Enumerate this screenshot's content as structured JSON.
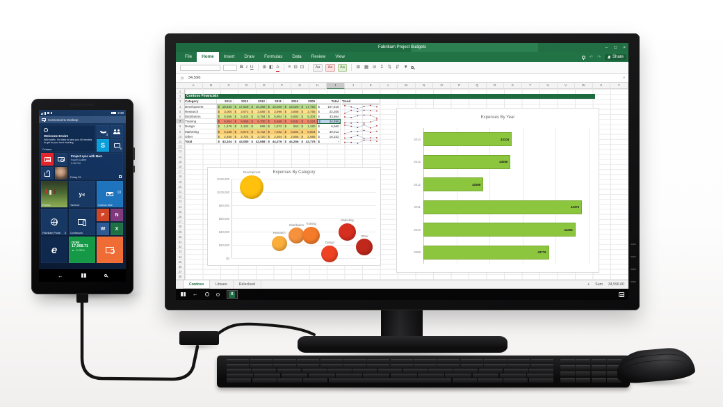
{
  "phone": {
    "status_time": "2:30",
    "banner": "Connected to Desktop",
    "tiles": {
      "cortana": {
        "greeting": "Welcome Erwin!",
        "message": "With traffic, it's likely to take you 45 minutes to get to your next meeting.",
        "label": "Cortana"
      },
      "phone_badge": "3",
      "messaging_badge": "5",
      "skype_letter": "S",
      "calendar": {
        "event": "Project sync with Marc",
        "location": "Fourth Coffee",
        "time": "2:30 PM",
        "date": "Friday 29"
      },
      "photos_label": "Photos",
      "yammer": {
        "logo": "y«",
        "label": "Yammer"
      },
      "outlook": {
        "label": "Outlook Mail",
        "badge": "10"
      },
      "fabrikam": {
        "label": "Fabrikam Portal",
        "badge": "4"
      },
      "continuum_label": "Continuum",
      "office_letters": {
        "powerpoint": "P",
        "onenote": "N",
        "word": "W",
        "excel": "X"
      },
      "edge_letter": "e",
      "dow": {
        "index": "DOW",
        "value": "17,068.71",
        "change": "▲ +0.32%"
      }
    },
    "colors": {
      "skype": "#0a9fdb",
      "news": "#e3242b",
      "powerpoint": "#d04526",
      "onenote": "#80397b",
      "word": "#2d5994",
      "excel": "#1e7145",
      "edge": "#1e74bd",
      "dow": "#159947",
      "sync": "#ef6c35"
    }
  },
  "excel": {
    "title": "Fabrikam Project Budgets",
    "window_controls": [
      "–",
      "□",
      "×"
    ],
    "ribbon_tabs": [
      "File",
      "Home",
      "Insert",
      "Draw",
      "Formulas",
      "Data",
      "Review",
      "View"
    ],
    "active_tab": "Home",
    "share_label": "Share",
    "toolbar": {
      "bold": "B",
      "italic": "I",
      "underline": "U",
      "borders": "⊞",
      "fill_color": "◧",
      "font_color": "A",
      "align": "≡",
      "merge": "⊟",
      "wrap": "⊡",
      "style_chips": [
        "Aa",
        "Aa",
        "Aa"
      ],
      "icons": [
        {
          "name": "insert-cells-icon",
          "g": "⊞"
        },
        {
          "name": "format-table-icon",
          "g": "▦"
        },
        {
          "name": "clear-icon",
          "g": "⊘"
        },
        {
          "name": "autosum-icon",
          "g": "Σ"
        },
        {
          "name": "sort-asc-icon",
          "g": "⇅"
        },
        {
          "name": "sort-desc-icon",
          "g": "⇵"
        },
        {
          "name": "filter-icon",
          "g": "▼"
        }
      ]
    },
    "formula_bar": {
      "fx_label": "fx",
      "value": "34,596"
    },
    "columns": [
      "A",
      "B",
      "C",
      "D",
      "E",
      "F",
      "G",
      "H",
      "I",
      "J",
      "K",
      "L",
      "M",
      "N",
      "O",
      "P",
      "Q",
      "R",
      "S",
      "T",
      "U",
      "V",
      "W",
      "X",
      "Y"
    ],
    "selected_column": "I",
    "selected_row": 7,
    "row_count": 38,
    "table": {
      "banner": "Contoso Financials",
      "currency_symbol": "$",
      "headers": [
        "Category",
        "2014",
        "2013",
        "2012",
        "2011",
        "2010",
        "2009",
        "Total",
        "Trend"
      ],
      "rows": [
        {
          "category": "Development",
          "values": [
            18840,
            17628,
            16368,
            18000,
            19020,
            17760
          ],
          "total": "107,616",
          "fill": "#b7dd8b"
        },
        {
          "category": "Research",
          "values": [
            3000,
            3972,
            3588,
            3996,
            3888,
            3756
          ],
          "total": "22,200",
          "fill": "#ffe08a"
        },
        {
          "category": "Distribution",
          "values": [
            5556,
            5424,
            5784,
            5904,
            5892,
            5304
          ],
          "total": "33,864",
          "fill": "#d9e88c"
        },
        {
          "category": "Training",
          "values": [
            5604,
            5556,
            5700,
            5568,
            5844,
            6324
          ],
          "total": "34,596",
          "fill": "#ef8468",
          "selected_total": true
        },
        {
          "category": "Design",
          "values": [
            1476,
            1104,
            696,
            1572,
            552,
            1260
          ],
          "total": "6,660",
          "fill": "#d7e993"
        },
        {
          "category": "Marketing",
          "values": [
            6168,
            6672,
            6732,
            7032,
            6504,
            6804
          ],
          "total": "39,912",
          "fill": "#fecf74"
        },
        {
          "category": "Other",
          "values": [
            2460,
            2724,
            3720,
            2304,
            2556,
            2568
          ],
          "total": "16,332",
          "fill": "#ffe08a"
        }
      ],
      "total_row": {
        "category": "Total",
        "values": [
          43104,
          43080,
          42588,
          44376,
          44256,
          43776
        ],
        "total": "-"
      }
    },
    "sheet_tabs": [
      "Contoso",
      "Litware",
      "Relecloud"
    ],
    "active_sheet": "Contoso",
    "status_bar": {
      "add": "+",
      "sum_label": "Sum",
      "sum_value": "34,596.00"
    },
    "taskbar_icons": [
      "windows",
      "back",
      "cortana",
      "task-view",
      "excel-app"
    ]
  },
  "chart_data": [
    {
      "type": "bubble",
      "title": "Expenses By Category",
      "y_ticks": [
        "$120,000",
        "$100,000",
        "$80,000",
        "$60,000",
        "$40,000",
        "$20,000",
        "$0"
      ],
      "ylim": [
        0,
        120000
      ],
      "points": [
        {
          "label": "Development",
          "x": 0.14,
          "value": 107616,
          "r": 17,
          "color": "#FFC10E"
        },
        {
          "label": "Research",
          "x": 0.33,
          "value": 22200,
          "r": 11,
          "color": "#FBAE3C"
        },
        {
          "label": "Distribution",
          "x": 0.45,
          "value": 33864,
          "r": 11.5,
          "color": "#F6913E"
        },
        {
          "label": "Training",
          "x": 0.55,
          "value": 34596,
          "r": 12.5,
          "color": "#F47B29"
        },
        {
          "label": "Design",
          "x": 0.68,
          "value": 6660,
          "r": 12,
          "color": "#EF4123"
        },
        {
          "label": "Marketing",
          "x": 0.8,
          "value": 39912,
          "r": 12.5,
          "color": "#D62E1F"
        },
        {
          "label": "Other",
          "x": 0.92,
          "value": 16332,
          "r": 12,
          "color": "#C0281C"
        }
      ]
    },
    {
      "type": "bar",
      "title": "Expenses By Year",
      "categories": [
        "2014",
        "2013",
        "2012",
        "2011",
        "2010",
        "2009"
      ],
      "values": [
        43104,
        43080,
        42588,
        44376,
        44256,
        43776
      ],
      "xlim": [
        41500,
        44500
      ],
      "bar_color": "#8CC63F",
      "grid": true,
      "orientation": "horizontal"
    }
  ]
}
